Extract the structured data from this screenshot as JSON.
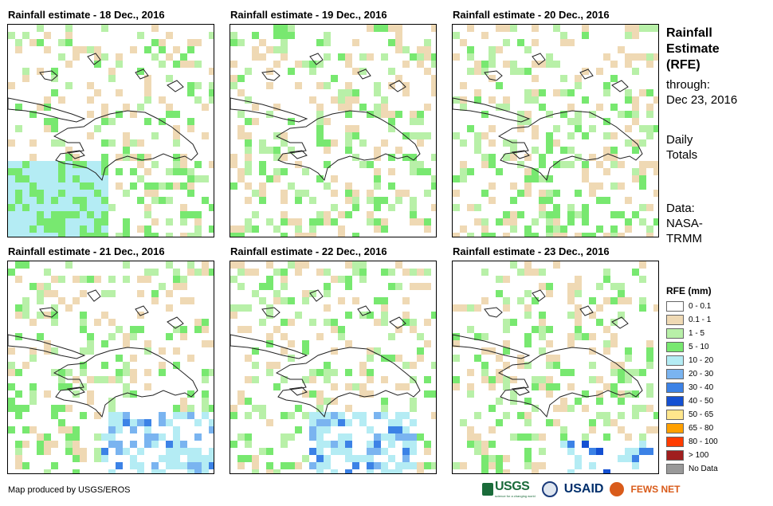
{
  "panels": [
    {
      "title": "Rainfall estimate - 18 Dec., 2016",
      "seed": 18
    },
    {
      "title": "Rainfall estimate - 19 Dec., 2016",
      "seed": 19
    },
    {
      "title": "Rainfall estimate - 20 Dec., 2016",
      "seed": 20
    },
    {
      "title": "Rainfall estimate - 21 Dec., 2016",
      "seed": 21
    },
    {
      "title": "Rainfall estimate - 22 Dec., 2016",
      "seed": 22
    },
    {
      "title": "Rainfall estimate - 23 Dec., 2016",
      "seed": 23
    }
  ],
  "side": {
    "title_line1": "Rainfall",
    "title_line2": "Estimate",
    "title_line3": "(RFE)",
    "through_label": "through:",
    "through_date": "Dec 23, 2016",
    "totals_line1": "Daily",
    "totals_line2": "Totals",
    "data_line1": "Data:",
    "data_line2": "NASA-",
    "data_line3": "TRMM"
  },
  "legend": {
    "title": "RFE (mm)",
    "items": [
      {
        "label": "0 - 0.1",
        "color": "#ffffff"
      },
      {
        "label": "0.1 - 1",
        "color": "#efd9b4"
      },
      {
        "label": "1 - 5",
        "color": "#b8f0a8"
      },
      {
        "label": "5 - 10",
        "color": "#78e870"
      },
      {
        "label": "10 - 20",
        "color": "#b4ecf4"
      },
      {
        "label": "20 - 30",
        "color": "#7ab4f0"
      },
      {
        "label": "30 - 40",
        "color": "#3c82e6"
      },
      {
        "label": "40 - 50",
        "color": "#1450d2"
      },
      {
        "label": "50 - 65",
        "color": "#ffe68c"
      },
      {
        "label": "65 - 80",
        "color": "#ffa000"
      },
      {
        "label": "80 - 100",
        "color": "#ff3c00"
      },
      {
        "label": "> 100",
        "color": "#a01e1e"
      },
      {
        "label": "No Data",
        "color": "#999999"
      }
    ]
  },
  "footer": {
    "credit": "Map produced by USGS/EROS",
    "logo_usgs": "USGS",
    "logo_usgs_tagline": "science for a changing world",
    "logo_usaid": "USAID",
    "logo_fews": "FEWS NET"
  }
}
